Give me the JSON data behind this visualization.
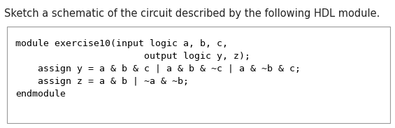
{
  "title": "Sketch a schematic of the circuit described by the following HDL module.",
  "title_fontsize": 10.5,
  "title_color": "#222222",
  "background_color": "#ffffff",
  "box_edge_color": "#999999",
  "code_lines": [
    "module exercise10(input logic a, b, c,",
    "                       output logic y, z);",
    "    assign y = a & b & c | a & b & ~c | a & ~b & c;",
    "    assign z = a & b | ~a & ~b;",
    "endmodule"
  ],
  "code_fontsize": 9.5,
  "code_color": "#000000",
  "code_font": "monospace"
}
